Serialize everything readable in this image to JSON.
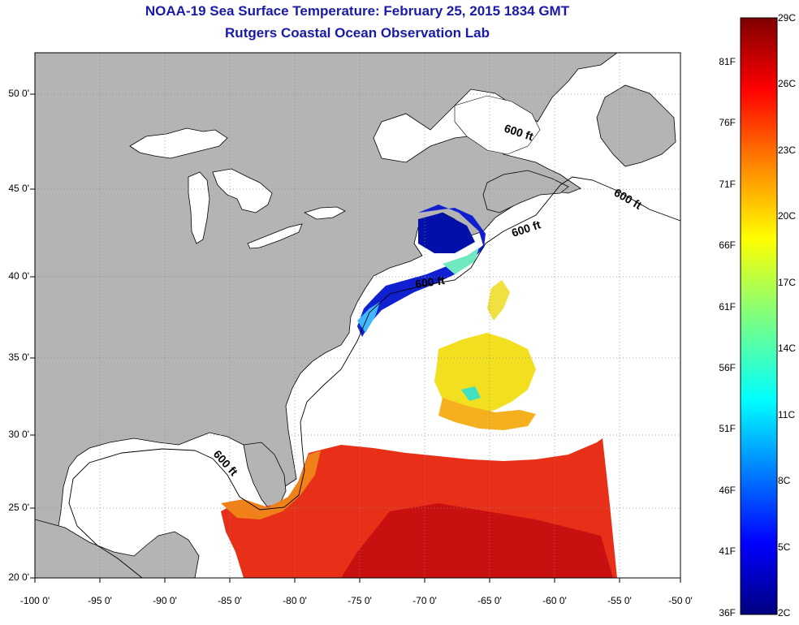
{
  "header": {
    "title": "NOAA-19 Sea Surface Temperature:  February 25, 2015 1834 GMT",
    "subtitle": "Rutgers Coastal Ocean Observation Lab"
  },
  "map": {
    "x_axis_labels": [
      "-100 0'",
      "-95 0'",
      "-90 0'",
      "-85 0'",
      "-80 0'",
      "-75 0'",
      "-70 0'",
      "-65 0'",
      "-60 0'",
      "-55 0'",
      "-50 0'"
    ],
    "y_axis_labels": [
      "50 0'",
      "45 0'",
      "40 0'",
      "35 0'",
      "30 0'",
      "25 0'",
      "20 0'"
    ],
    "bathymetry_labels": [
      "600 ft",
      "600 ft",
      "600 ft",
      "600 ft",
      "600 ft"
    ],
    "land_color": "#b4b4b4",
    "ocean_no_data_color": "#ffffff",
    "grid": "dotted"
  },
  "colorbar": {
    "fahrenheit_labels": [
      "81F",
      "76F",
      "71F",
      "66F",
      "61F",
      "56F",
      "51F",
      "46F",
      "41F",
      "36F"
    ],
    "celsius_labels": [
      "29C",
      "26C",
      "23C",
      "20C",
      "17C",
      "14C",
      "11C",
      "8C",
      "5C",
      "2C"
    ],
    "colors": [
      "#00007f",
      "#0000ff",
      "#007fff",
      "#00ffff",
      "#7fff7f",
      "#ffff00",
      "#ff7f00",
      "#ff0000",
      "#7f0000"
    ]
  }
}
